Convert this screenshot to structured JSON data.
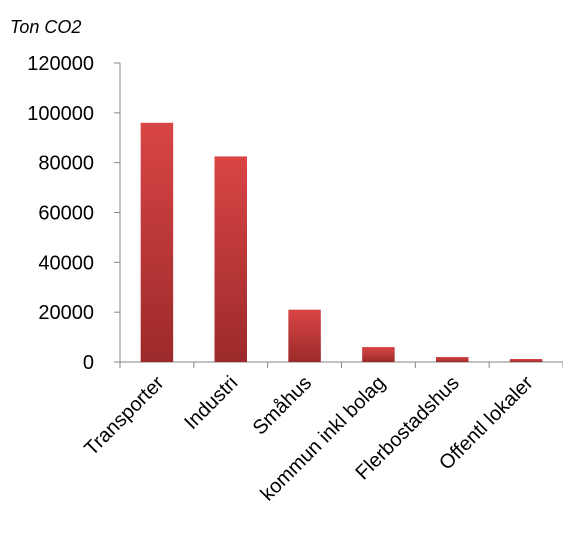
{
  "chart_data": {
    "type": "bar",
    "title": "",
    "ylabel": "Ton CO2",
    "xlabel": "",
    "categories": [
      "Transporter",
      "Industri",
      "Småhus",
      "kommun inkl bolag",
      "Flerbostadshus",
      "Offentl lokaler"
    ],
    "values": [
      96000,
      82500,
      21000,
      6000,
      2000,
      1200
    ],
    "ylim": [
      0,
      120000
    ],
    "yticks": [
      0,
      20000,
      40000,
      60000,
      80000,
      100000,
      120000
    ],
    "ytick_labels": [
      "0",
      "20000",
      "40000",
      "60000",
      "80000",
      "100000",
      "120000"
    ],
    "grid": false,
    "legend": "none",
    "colors": {
      "bar_top": "#d94545",
      "bar_bottom": "#9c2a2a",
      "axis": "#868686"
    }
  }
}
